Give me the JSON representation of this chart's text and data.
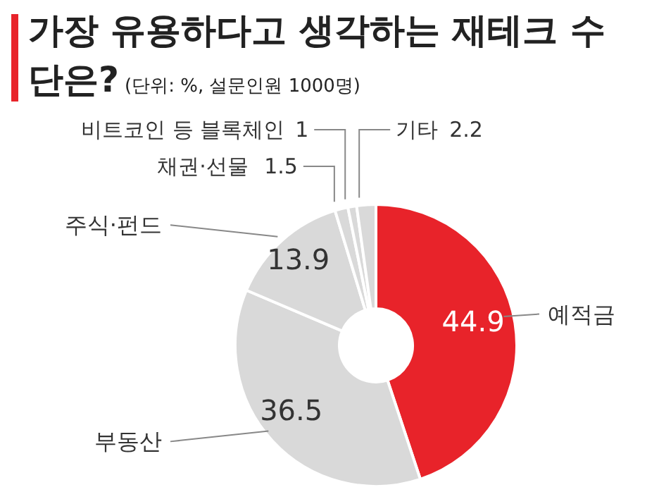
{
  "chart_data": {
    "type": "donut",
    "title": "가장 유용하다고 생각하는 재테크 수단은?",
    "subtitle": "(단위: %, 설문인원 1000명)",
    "categories": [
      "예적금",
      "부동산",
      "주식·펀드",
      "채권·선물",
      "비트코인 등 블록체인",
      "기타"
    ],
    "values": [
      44.9,
      36.5,
      13.9,
      1.5,
      1,
      2.2
    ],
    "colors": [
      "#e8232a",
      "#d9d9d9",
      "#d9d9d9",
      "#d9d9d9",
      "#d9d9d9",
      "#d9d9d9"
    ],
    "data_labels": true,
    "legend": false
  }
}
